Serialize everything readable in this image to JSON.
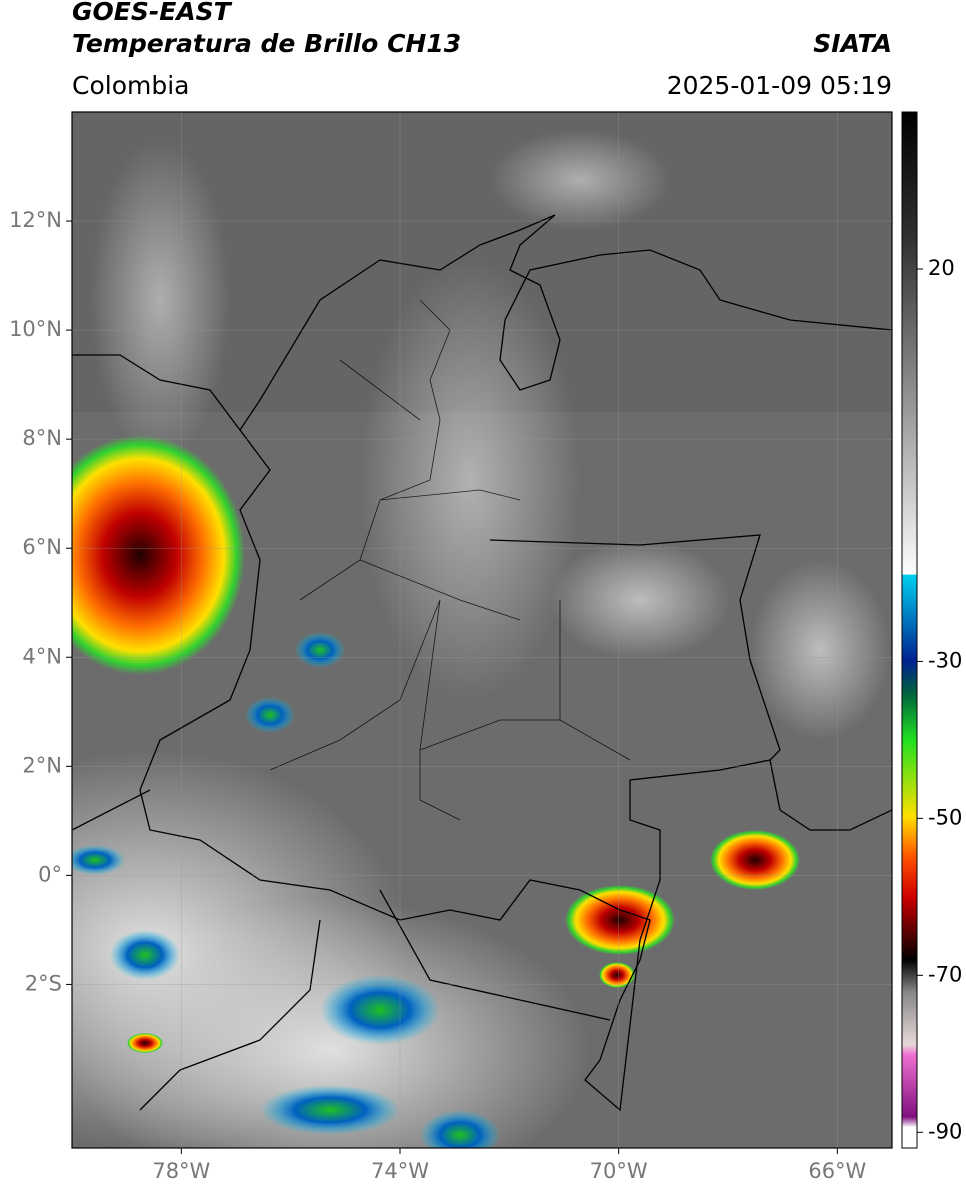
{
  "header": {
    "title": "GOES-EAST",
    "subtitle": "Temperatura de Brillo CH13",
    "region": "Colombia",
    "source": "SIATA",
    "datetime": "2025-01-09 05:19"
  },
  "map": {
    "xlim": [
      -80,
      -65
    ],
    "ylim": [
      -5,
      14
    ],
    "xticks": [
      {
        "value": -78,
        "label": "78°W"
      },
      {
        "value": -74,
        "label": "74°W"
      },
      {
        "value": -70,
        "label": "70°W"
      },
      {
        "value": -66,
        "label": "66°W"
      }
    ],
    "yticks": [
      {
        "value": 12,
        "label": "12°N"
      },
      {
        "value": 10,
        "label": "10°N"
      },
      {
        "value": 8,
        "label": "8°N"
      },
      {
        "value": 6,
        "label": "6°N"
      },
      {
        "value": 4,
        "label": "4°N"
      },
      {
        "value": 2,
        "label": "2°N"
      },
      {
        "value": 0,
        "label": "0°"
      },
      {
        "value": -2,
        "label": "2°S"
      }
    ],
    "grid": true
  },
  "colorbar": {
    "lim": [
      -92,
      40
    ],
    "ticks": [
      20,
      -30,
      -50,
      -70,
      -90
    ]
  }
}
